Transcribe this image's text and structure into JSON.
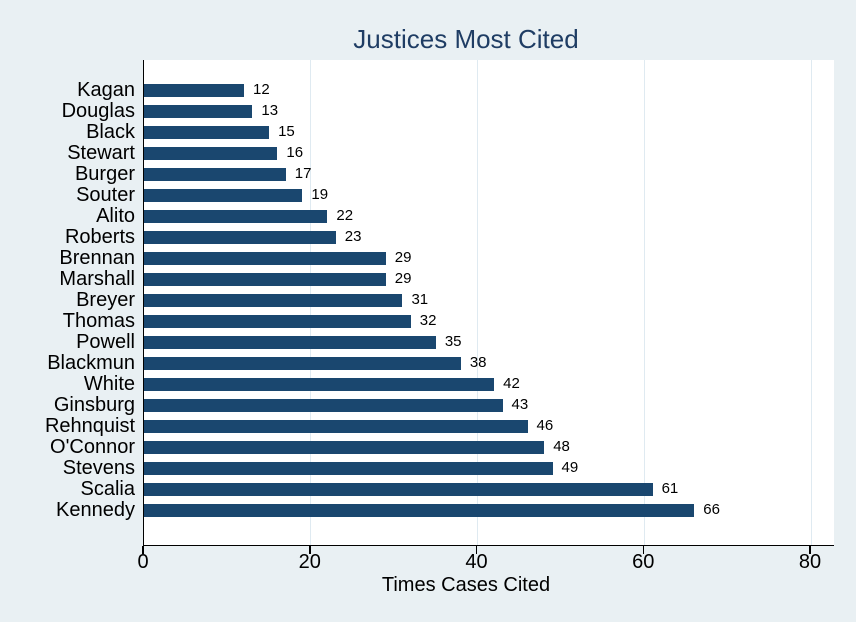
{
  "chart_data": {
    "type": "bar",
    "orientation": "horizontal",
    "title": "Justices Most Cited",
    "xlabel": "Times Cases Cited",
    "categories": [
      "Kagan",
      "Douglas",
      "Black",
      "Stewart",
      "Burger",
      "Souter",
      "Alito",
      "Roberts",
      "Brennan",
      "Marshall",
      "Breyer",
      "Thomas",
      "Powell",
      "Blackmun",
      "White",
      "Ginsburg",
      "Rehnquist",
      "O'Connor",
      "Stevens",
      "Scalia",
      "Kennedy"
    ],
    "values": [
      12,
      13,
      15,
      16,
      17,
      19,
      22,
      23,
      29,
      29,
      31,
      32,
      35,
      38,
      42,
      43,
      46,
      48,
      49,
      61,
      66
    ],
    "value_labels_shown": true,
    "xticks": [
      0,
      20,
      40,
      60,
      80
    ],
    "xlim": [
      0,
      82.8
    ],
    "grid": true,
    "legend": "none",
    "colors": {
      "bar": "#1a476f",
      "title": "#1f3d64",
      "background": "#e9f0f3",
      "plot_background": "#ffffff",
      "gridline": "#dfeaf1",
      "axis": "#000000",
      "text": "#000000"
    }
  }
}
